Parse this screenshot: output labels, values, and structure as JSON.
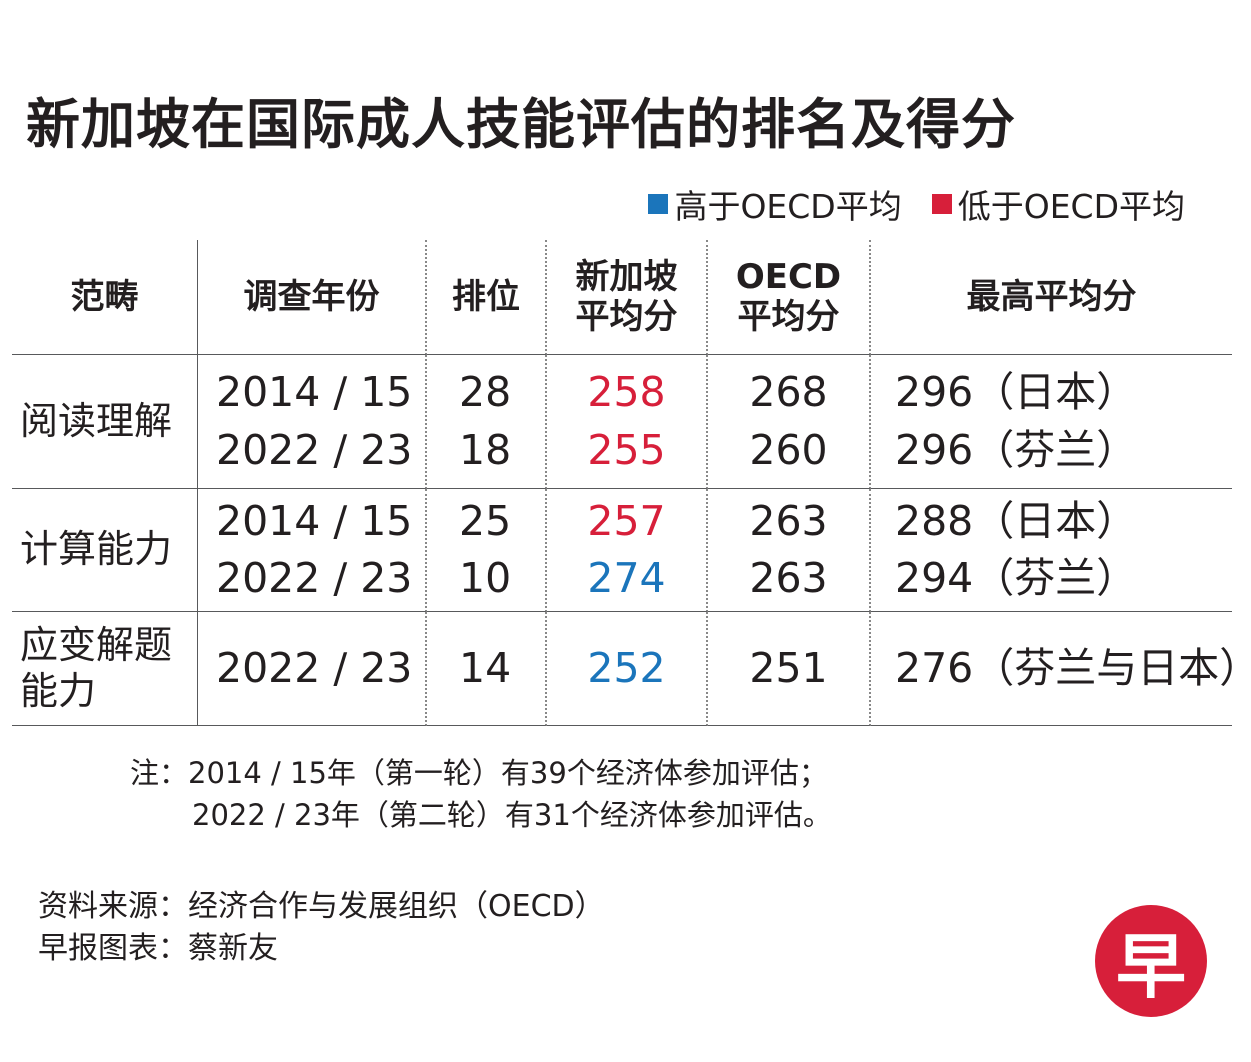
{
  "title": "新加坡在国际成人技能评估的排名及得分",
  "legend": {
    "above": {
      "label": "高于OECD平均",
      "color": "#1b75bb"
    },
    "below": {
      "label": "低于OECD平均",
      "color": "#d71f3a"
    }
  },
  "table": {
    "headers": {
      "category": "范畴",
      "year": "调查年份",
      "rank": "排位",
      "sg_avg_line1": "新加坡",
      "sg_avg_line2": "平均分",
      "oecd_avg_line1": "OECD",
      "oecd_avg_line2": "平均分",
      "top_avg": "最高平均分"
    },
    "groups": [
      {
        "category_line1": "阅读理解",
        "category_line2": "",
        "rows": [
          {
            "year": "2014 / 15",
            "rank": "28",
            "sg": "258",
            "status": "below",
            "oecd": "268",
            "top": "296（日本）"
          },
          {
            "year": "2022 / 23",
            "rank": "18",
            "sg": "255",
            "status": "below",
            "oecd": "260",
            "top": "296（芬兰）"
          }
        ]
      },
      {
        "category_line1": "计算能力",
        "category_line2": "",
        "rows": [
          {
            "year": "2014 / 15",
            "rank": "25",
            "sg": "257",
            "status": "below",
            "oecd": "263",
            "top": "288（日本）"
          },
          {
            "year": "2022 / 23",
            "rank": "10",
            "sg": "274",
            "status": "above",
            "oecd": "263",
            "top": "294（芬兰）"
          }
        ]
      },
      {
        "category_line1": "应变解题",
        "category_line2": "能力",
        "rows": [
          {
            "year": "2022 / 23",
            "rank": "14",
            "sg": "252",
            "status": "above",
            "oecd": "251",
            "top": "276（芬兰与日本）"
          }
        ]
      }
    ]
  },
  "note": {
    "line1": "注：2014 / 15年（第一轮）有39个经济体参加评估；",
    "line2": "2022 / 23年（第二轮）有31个经济体参加评估。"
  },
  "source": {
    "line1": "资料来源：经济合作与发展组织（OECD）",
    "line2": "早报图表：蔡新友"
  },
  "logo": {
    "text": "早",
    "color": "#d71f3a"
  }
}
